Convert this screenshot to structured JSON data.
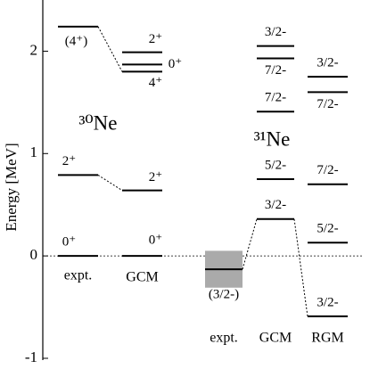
{
  "chart_data": {
    "type": "level-scheme",
    "y_label": "Energy [MeV]",
    "ylim": [
      -1,
      2.5
    ],
    "yticks": [
      -1,
      0,
      1,
      2
    ],
    "nuclei": [
      "³⁰Ne",
      "³¹Ne"
    ],
    "columns": [
      {
        "label": "expt.",
        "levels": [
          {
            "label": "0⁺",
            "energy": 0
          },
          {
            "label": "2⁺",
            "energy": 0.79
          },
          {
            "label": "(4⁺)",
            "energy": 2.24
          }
        ]
      },
      {
        "label": "GCM",
        "levels": [
          {
            "label": "0⁺",
            "energy": 0
          },
          {
            "label": "2⁺",
            "energy": 0.64
          },
          {
            "label": "4⁺",
            "energy": 1.8
          },
          {
            "label": "0⁺",
            "energy": 1.87
          },
          {
            "label": "2⁺",
            "energy": 1.99
          }
        ]
      },
      {
        "label": "expt.",
        "levels": [
          {
            "label": "(3/2-)",
            "energy": -0.13,
            "error": 0.18
          }
        ]
      },
      {
        "label": "GCM",
        "levels": [
          {
            "label": "3/2-",
            "energy": 0.36
          },
          {
            "label": "5/2-",
            "energy": 0.75
          },
          {
            "label": "7/2-",
            "energy": 1.41
          },
          {
            "label": "7/2-",
            "energy": 1.93
          },
          {
            "label": "3/2-",
            "energy": 2.05
          }
        ]
      },
      {
        "label": "RGM",
        "levels": [
          {
            "label": "3/2-",
            "energy": -0.59
          },
          {
            "label": "5/2-",
            "energy": 0.13
          },
          {
            "label": "7/2-",
            "energy": 0.7
          },
          {
            "label": "7/2-",
            "energy": 1.6
          },
          {
            "label": "3/2-",
            "energy": 1.75
          }
        ]
      }
    ]
  }
}
